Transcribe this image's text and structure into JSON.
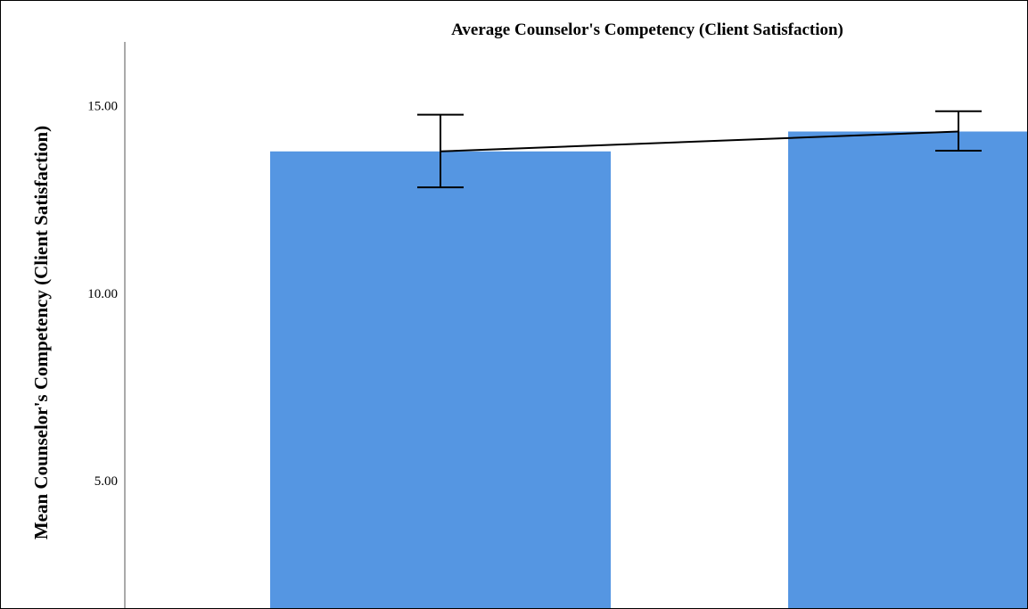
{
  "chart_data": {
    "type": "bar",
    "title": "Average Counselor's Competency (Client Satisfaction)",
    "xlabel": "",
    "ylabel": "Mean Counselor's Competency (Client Satisfaction)",
    "categories": [
      "",
      ""
    ],
    "series": [
      {
        "values": [
          13.78,
          14.31
        ],
        "error_low": [
          12.82,
          13.8
        ],
        "error_high": [
          14.76,
          14.85
        ]
      }
    ],
    "mean_line": true,
    "yticks": [
      5,
      10,
      15
    ],
    "ytick_labels": [
      "5.00",
      "10.00",
      "15.00"
    ],
    "ylim": [
      1.6,
      16.7
    ],
    "grid": false,
    "legend": "none",
    "colors": {
      "bar": "#5596e2",
      "line": "#000000",
      "axis": "#555555"
    }
  }
}
